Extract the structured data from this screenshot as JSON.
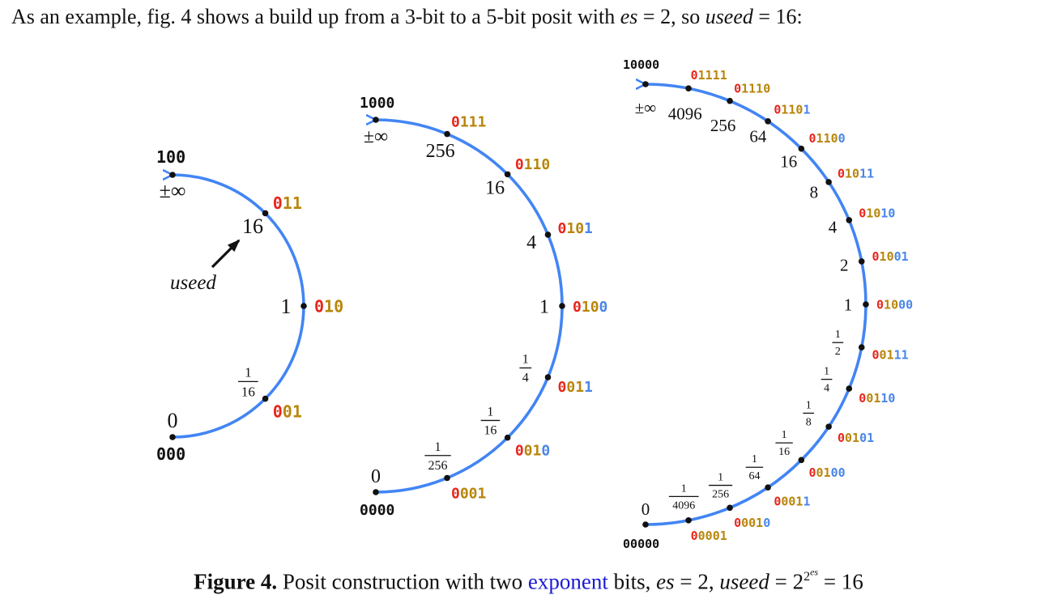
{
  "intro": {
    "before_es": "As an example, fig. 4 shows a build up from a 3-bit to a 5-bit posit with ",
    "es_var": "es",
    "es_eq": " = 2, so ",
    "useed_var": "useed",
    "useed_eq": " = 16:"
  },
  "caption": {
    "fig_label": "Figure 4.",
    "text_before": " Posit construction with two ",
    "link": "exponent",
    "text_after": " bits, ",
    "es_var": "es",
    "es_eq": " = 2, ",
    "useed_var": "useed",
    "useed_eq": " = 2",
    "exp1": "2",
    "exp2": "es",
    "result": " = 16"
  },
  "colors": {
    "sign": "#e8261b",
    "regime": "#b8860b",
    "exponent": "#4a86e8",
    "fraction": "#4a86e8",
    "arc": "#4285f4",
    "black": "#111111"
  },
  "annotation": {
    "useed_label": "useed",
    "useed_value": "16"
  },
  "rings": [
    {
      "points": [
        {
          "bits": "000",
          "colors": [
            "k",
            "k",
            "k"
          ],
          "value": "0"
        },
        {
          "bits": "001",
          "colors": [
            "s",
            "r",
            "r"
          ],
          "value": "1/16"
        },
        {
          "bits": "010",
          "colors": [
            "s",
            "r",
            "r"
          ],
          "value": "1"
        },
        {
          "bits": "011",
          "colors": [
            "s",
            "r",
            "r"
          ],
          "value": "16"
        },
        {
          "bits": "100",
          "colors": [
            "k",
            "k",
            "k"
          ],
          "value": "±∞"
        }
      ]
    },
    {
      "points": [
        {
          "bits": "0000",
          "colors": [
            "k",
            "k",
            "k",
            "k"
          ],
          "value": "0"
        },
        {
          "bits": "0001",
          "colors": [
            "s",
            "r",
            "r",
            "r"
          ],
          "value": "1/256"
        },
        {
          "bits": "0010",
          "colors": [
            "s",
            "r",
            "r",
            "e"
          ],
          "value": "1/16"
        },
        {
          "bits": "0011",
          "colors": [
            "s",
            "r",
            "r",
            "e"
          ],
          "value": "1/4"
        },
        {
          "bits": "0100",
          "colors": [
            "s",
            "r",
            "r",
            "e"
          ],
          "value": "1"
        },
        {
          "bits": "0101",
          "colors": [
            "s",
            "r",
            "r",
            "e"
          ],
          "value": "4"
        },
        {
          "bits": "0110",
          "colors": [
            "s",
            "r",
            "r",
            "r"
          ],
          "value": "16"
        },
        {
          "bits": "0111",
          "colors": [
            "s",
            "r",
            "r",
            "r"
          ],
          "value": "256"
        },
        {
          "bits": "1000",
          "colors": [
            "k",
            "k",
            "k",
            "k"
          ],
          "value": "±∞"
        }
      ]
    },
    {
      "points": [
        {
          "bits": "00000",
          "colors": [
            "k",
            "k",
            "k",
            "k",
            "k"
          ],
          "value": "0"
        },
        {
          "bits": "00001",
          "colors": [
            "s",
            "r",
            "r",
            "r",
            "r"
          ],
          "value": "1/4096"
        },
        {
          "bits": "00010",
          "colors": [
            "s",
            "r",
            "r",
            "r",
            "e"
          ],
          "value": "1/256"
        },
        {
          "bits": "00011",
          "colors": [
            "s",
            "r",
            "r",
            "r",
            "e"
          ],
          "value": "1/64"
        },
        {
          "bits": "00100",
          "colors": [
            "s",
            "r",
            "r",
            "e",
            "e"
          ],
          "value": "1/16"
        },
        {
          "bits": "00101",
          "colors": [
            "s",
            "r",
            "r",
            "e",
            "e"
          ],
          "value": "1/8"
        },
        {
          "bits": "00110",
          "colors": [
            "s",
            "r",
            "r",
            "e",
            "e"
          ],
          "value": "1/4"
        },
        {
          "bits": "00111",
          "colors": [
            "s",
            "r",
            "r",
            "e",
            "e"
          ],
          "value": "1/2"
        },
        {
          "bits": "01000",
          "colors": [
            "s",
            "r",
            "r",
            "e",
            "e"
          ],
          "value": "1"
        },
        {
          "bits": "01001",
          "colors": [
            "s",
            "r",
            "r",
            "e",
            "e"
          ],
          "value": "2"
        },
        {
          "bits": "01010",
          "colors": [
            "s",
            "r",
            "r",
            "e",
            "e"
          ],
          "value": "4"
        },
        {
          "bits": "01011",
          "colors": [
            "s",
            "r",
            "r",
            "e",
            "e"
          ],
          "value": "8"
        },
        {
          "bits": "01100",
          "colors": [
            "s",
            "r",
            "r",
            "r",
            "e"
          ],
          "value": "16"
        },
        {
          "bits": "01101",
          "colors": [
            "s",
            "r",
            "r",
            "r",
            "e"
          ],
          "value": "64"
        },
        {
          "bits": "01110",
          "colors": [
            "s",
            "r",
            "r",
            "r",
            "r"
          ],
          "value": "256"
        },
        {
          "bits": "01111",
          "colors": [
            "s",
            "r",
            "r",
            "r",
            "r"
          ],
          "value": "4096"
        },
        {
          "bits": "10000",
          "colors": [
            "k",
            "k",
            "k",
            "k",
            "k"
          ],
          "value": "±∞"
        }
      ]
    }
  ]
}
